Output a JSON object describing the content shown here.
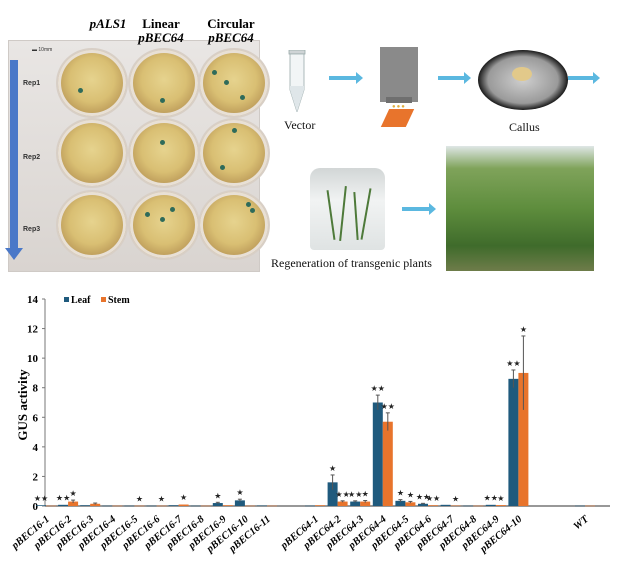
{
  "figure": {
    "plate_panel": {
      "column_labels": [
        {
          "line1": "",
          "line2": "pALS1"
        },
        {
          "line1": "Linear",
          "line2": "pBEC64"
        },
        {
          "line1": "Circular",
          "line2": "pBEC64"
        }
      ],
      "row_labels": [
        "Rep1",
        "Rep2",
        "Rep3"
      ],
      "scale_bar": "10mm"
    },
    "workflow_panel": {
      "vector_label": "Vector",
      "callus_label": "Callus",
      "regeneration_label": "Regeneration of transgenic plants"
    }
  },
  "chart_data": {
    "type": "bar",
    "title": "",
    "xlabel": "",
    "ylabel": "GUS activity",
    "ylim": [
      0,
      14
    ],
    "yticks": [
      0,
      2,
      4,
      6,
      8,
      10,
      12,
      14
    ],
    "legend": {
      "placement": "top-left",
      "entries": [
        "Leaf",
        "Stem"
      ]
    },
    "categories": [
      "pBEC16-1",
      "pBEC16-2",
      "pBEC16-3",
      "pBEC16-4",
      "pBEC16-5",
      "pBEC16-6",
      "pBEC16-7",
      "pBEC16-8",
      "pBEC16-9",
      "pBEC16-10",
      "pBEC16-11",
      "pBEC64-1",
      "pBEC64-2",
      "pBEC64-3",
      "pBEC64-4",
      "pBEC64-5",
      "pBEC64-6",
      "pBEC64-7",
      "pBEC64-8",
      "pBEC64-9",
      "pBEC64-10",
      "WT"
    ],
    "series": [
      {
        "name": "Leaf",
        "color": "#1f5a7d",
        "values": [
          0.05,
          0.08,
          0.05,
          0.02,
          0.02,
          0.02,
          0.05,
          0.02,
          0.2,
          0.38,
          0.03,
          0.02,
          1.6,
          0.3,
          7.0,
          0.35,
          0.15,
          0.08,
          0.02,
          0.08,
          8.6,
          0.02
        ],
        "errors": [
          0.02,
          0.03,
          0.02,
          0.01,
          0.01,
          0.01,
          0.02,
          0.01,
          0.05,
          0.08,
          0.01,
          0.01,
          0.5,
          0.05,
          0.5,
          0.08,
          0.03,
          0.02,
          0.01,
          0.02,
          0.6,
          0.01
        ],
        "significance": [
          "**",
          "**",
          "",
          "",
          "",
          "",
          "",
          "",
          "*",
          "*",
          "",
          "",
          "*",
          "**",
          "**",
          "*",
          "**",
          "",
          "",
          "**",
          "**",
          ""
        ]
      },
      {
        "name": "Stem",
        "color": "#e8742c",
        "values": [
          0.02,
          0.3,
          0.15,
          0.02,
          0.02,
          0.02,
          0.1,
          0.02,
          0.05,
          0.02,
          0.02,
          0.05,
          0.3,
          0.3,
          5.7,
          0.25,
          0.05,
          0.03,
          0.02,
          0.06,
          9.0,
          0.02
        ],
        "errors": [
          0.01,
          0.1,
          0.05,
          0.01,
          0.01,
          0.01,
          0.03,
          0.01,
          0.02,
          0.01,
          0.01,
          0.02,
          0.05,
          0.07,
          0.6,
          0.06,
          0.02,
          0.01,
          0.01,
          0.02,
          2.5,
          0.01
        ],
        "significance": [
          "",
          "*",
          "",
          "",
          "*",
          "*",
          "*",
          "",
          "",
          "",
          "",
          "",
          "**",
          "*",
          "**",
          "*",
          "**",
          "*",
          "",
          "*",
          "*",
          ""
        ]
      }
    ]
  }
}
